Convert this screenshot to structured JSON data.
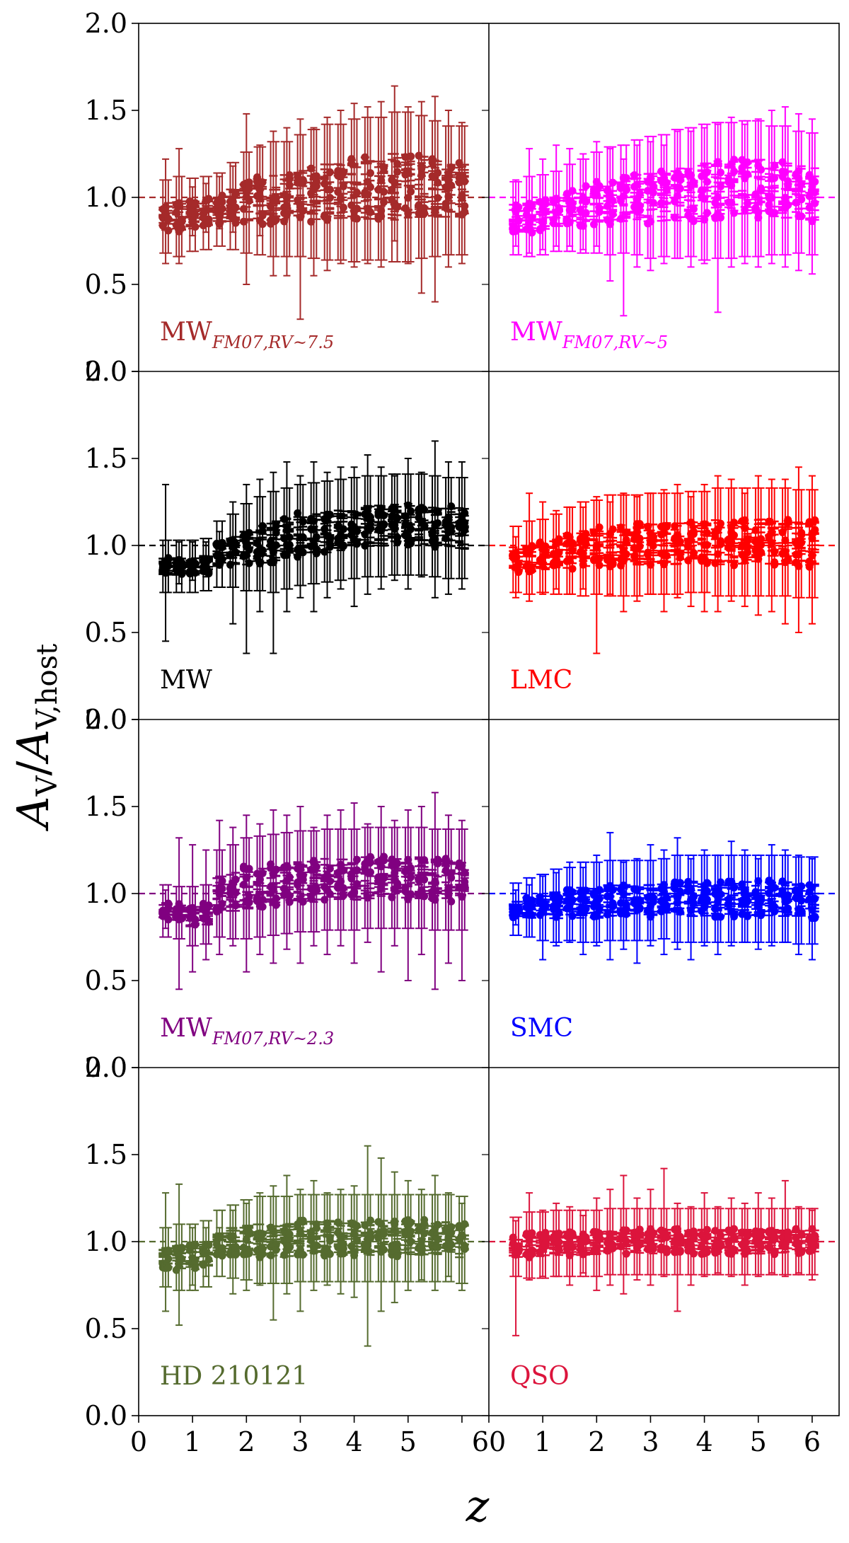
{
  "chart_data": {
    "type": "scatter",
    "description_axes": {
      "ylabel_main": "A",
      "ylabel_main_sub": "V",
      "ylabel_sep": "/",
      "ylabel_den": "A",
      "ylabel_den_sub": "V,host",
      "xlabel": "z"
    },
    "xlim": [
      0,
      6.5
    ],
    "ylim": [
      0.0,
      2.0
    ],
    "xticks": [
      0,
      1,
      2,
      3,
      4,
      5,
      6
    ],
    "xtick_labels_left": [
      "0",
      "1",
      "2",
      "3",
      "4",
      "5",
      "6"
    ],
    "xtick_labels_right": [
      "0",
      "1",
      "2",
      "3",
      "4",
      "5",
      "6"
    ],
    "xtick_joined_label": "60",
    "yticks": [
      0.0,
      0.5,
      1.0,
      1.5,
      2.0
    ],
    "ytick_labels": [
      "0.0",
      "0.5",
      "1.0",
      "1.5",
      "2.0"
    ],
    "z_values": [
      0.5,
      0.75,
      1.0,
      1.25,
      1.5,
      1.75,
      2.0,
      2.25,
      2.5,
      2.75,
      3.0,
      3.25,
      3.5,
      3.75,
      4.0,
      4.25,
      4.5,
      4.75,
      5.0,
      5.25,
      5.5,
      5.75,
      6.0
    ],
    "reference_line": 1.0,
    "panels": [
      {
        "row": 0,
        "col": 0,
        "name": "MW",
        "sub": "FM07,RV~7.5",
        "color": "#a52a2a",
        "center": [
          0.89,
          0.89,
          0.9,
          0.91,
          0.93,
          0.95,
          0.97,
          0.98,
          0.99,
          0.99,
          1.01,
          1.02,
          1.03,
          1.03,
          1.04,
          1.05,
          1.05,
          1.06,
          1.06,
          1.06,
          1.05,
          1.04,
          1.04
        ],
        "spread": [
          0.08,
          0.09,
          0.08,
          0.08,
          0.08,
          0.1,
          0.12,
          0.13,
          0.14,
          0.14,
          0.15,
          0.16,
          0.17,
          0.17,
          0.18,
          0.18,
          0.18,
          0.19,
          0.19,
          0.18,
          0.17,
          0.16,
          0.16
        ],
        "whisker_lo": [
          0.62,
          0.62,
          0.78,
          0.8,
          0.82,
          0.8,
          0.5,
          0.78,
          0.55,
          0.55,
          0.3,
          0.55,
          0.58,
          0.62,
          0.6,
          0.62,
          0.6,
          0.75,
          0.62,
          0.45,
          0.4,
          0.6,
          0.62
        ],
        "whisker_hi": [
          1.22,
          1.28,
          1.06,
          1.08,
          1.12,
          1.18,
          1.48,
          1.3,
          1.38,
          1.4,
          1.45,
          1.4,
          1.46,
          1.5,
          1.54,
          1.52,
          1.55,
          1.64,
          1.52,
          1.55,
          1.58,
          1.5,
          1.43
        ]
      },
      {
        "row": 0,
        "col": 1,
        "name": "MW",
        "sub": "FM07,RV~5",
        "color": "#ff00ff",
        "center": [
          0.88,
          0.89,
          0.9,
          0.92,
          0.94,
          0.95,
          0.97,
          0.98,
          0.99,
          1.0,
          1.0,
          1.01,
          1.02,
          1.03,
          1.03,
          1.04,
          1.04,
          1.05,
          1.05,
          1.04,
          1.04,
          1.03,
          1.02
        ],
        "spread": [
          0.08,
          0.09,
          0.09,
          0.09,
          0.1,
          0.11,
          0.12,
          0.13,
          0.13,
          0.14,
          0.15,
          0.15,
          0.16,
          0.16,
          0.17,
          0.17,
          0.17,
          0.17,
          0.17,
          0.16,
          0.16,
          0.15,
          0.15
        ],
        "whisker_lo": [
          0.72,
          0.68,
          0.7,
          0.72,
          0.72,
          0.7,
          0.72,
          0.52,
          0.32,
          0.6,
          0.58,
          0.62,
          0.65,
          0.6,
          0.62,
          0.34,
          0.6,
          0.62,
          0.6,
          0.62,
          0.6,
          0.58,
          0.56
        ],
        "whisker_hi": [
          1.1,
          1.28,
          1.22,
          1.3,
          1.28,
          1.25,
          1.32,
          1.28,
          1.22,
          1.3,
          1.32,
          1.3,
          1.38,
          1.38,
          1.4,
          1.42,
          1.46,
          1.42,
          1.45,
          1.5,
          1.52,
          1.48,
          1.45
        ]
      },
      {
        "row": 1,
        "col": 0,
        "name": "MW",
        "sub": "",
        "color": "#000000",
        "center": [
          0.88,
          0.88,
          0.88,
          0.89,
          0.95,
          0.97,
          0.99,
          1.01,
          1.02,
          1.04,
          1.06,
          1.07,
          1.08,
          1.09,
          1.1,
          1.11,
          1.11,
          1.12,
          1.12,
          1.12,
          1.11,
          1.1,
          1.1
        ],
        "spread": [
          0.05,
          0.05,
          0.05,
          0.05,
          0.07,
          0.08,
          0.1,
          0.11,
          0.12,
          0.12,
          0.12,
          0.12,
          0.12,
          0.12,
          0.12,
          0.12,
          0.12,
          0.12,
          0.12,
          0.12,
          0.12,
          0.12,
          0.12
        ],
        "whisker_lo": [
          0.45,
          0.78,
          0.8,
          0.82,
          0.88,
          0.55,
          0.38,
          0.62,
          0.38,
          0.62,
          0.7,
          0.62,
          0.7,
          0.75,
          0.65,
          0.72,
          0.75,
          0.8,
          0.75,
          0.82,
          0.7,
          0.72,
          0.75
        ],
        "whisker_hi": [
          1.35,
          1.02,
          1.02,
          1.02,
          1.08,
          1.25,
          1.35,
          1.38,
          1.42,
          1.48,
          1.4,
          1.48,
          1.42,
          1.45,
          1.45,
          1.52,
          1.45,
          1.4,
          1.5,
          1.42,
          1.6,
          1.48,
          1.48
        ]
      },
      {
        "row": 1,
        "col": 1,
        "name": "LMC",
        "sub": "",
        "color": "#ff0000",
        "center": [
          0.92,
          0.93,
          0.94,
          0.95,
          0.97,
          0.98,
          0.99,
          1.0,
          1.0,
          1.0,
          1.01,
          1.01,
          1.01,
          1.02,
          1.02,
          1.02,
          1.02,
          1.02,
          1.02,
          1.02,
          1.02,
          1.01,
          1.01
        ],
        "spread": [
          0.07,
          0.08,
          0.08,
          0.09,
          0.1,
          0.11,
          0.11,
          0.12,
          0.12,
          0.12,
          0.12,
          0.12,
          0.12,
          0.12,
          0.12,
          0.13,
          0.13,
          0.13,
          0.13,
          0.13,
          0.13,
          0.13,
          0.13
        ],
        "whisker_lo": [
          0.7,
          0.68,
          0.72,
          0.75,
          0.72,
          0.75,
          0.38,
          0.72,
          0.62,
          0.68,
          0.72,
          0.62,
          0.7,
          0.65,
          0.62,
          0.62,
          0.68,
          0.65,
          0.6,
          0.62,
          0.55,
          0.5,
          0.55
        ],
        "whisker_hi": [
          1.05,
          1.3,
          1.25,
          1.2,
          1.22,
          1.22,
          1.28,
          1.25,
          1.3,
          1.28,
          1.3,
          1.32,
          1.35,
          1.28,
          1.35,
          1.4,
          1.38,
          1.3,
          1.4,
          1.38,
          1.38,
          1.45,
          1.4
        ]
      },
      {
        "row": 2,
        "col": 0,
        "name": "MW",
        "sub": "FM07,RV~2.3",
        "color": "#800080",
        "center": [
          0.9,
          0.89,
          0.87,
          0.88,
          1.0,
          1.01,
          1.03,
          1.04,
          1.05,
          1.06,
          1.07,
          1.07,
          1.08,
          1.08,
          1.08,
          1.09,
          1.09,
          1.09,
          1.09,
          1.09,
          1.08,
          1.08,
          1.08
        ],
        "spread": [
          0.05,
          0.05,
          0.06,
          0.06,
          0.1,
          0.11,
          0.12,
          0.12,
          0.12,
          0.12,
          0.12,
          0.12,
          0.12,
          0.12,
          0.12,
          0.12,
          0.12,
          0.12,
          0.12,
          0.12,
          0.12,
          0.12,
          0.12
        ],
        "whisker_lo": [
          0.8,
          0.45,
          0.55,
          0.62,
          0.65,
          0.7,
          0.55,
          0.65,
          0.6,
          0.68,
          0.6,
          0.7,
          0.65,
          0.7,
          0.6,
          0.72,
          0.55,
          0.7,
          0.5,
          0.65,
          0.45,
          0.6,
          0.5
        ],
        "whisker_hi": [
          1.02,
          1.32,
          1.28,
          1.25,
          1.42,
          1.38,
          1.45,
          1.4,
          1.48,
          1.45,
          1.5,
          1.38,
          1.45,
          1.48,
          1.52,
          1.4,
          1.5,
          1.42,
          1.48,
          1.5,
          1.58,
          1.45,
          1.42
        ]
      },
      {
        "row": 2,
        "col": 1,
        "name": "SMC",
        "sub": "",
        "color": "#0000ff",
        "center": [
          0.91,
          0.92,
          0.92,
          0.93,
          0.94,
          0.95,
          0.95,
          0.96,
          0.96,
          0.96,
          0.96,
          0.97,
          0.97,
          0.97,
          0.97,
          0.97,
          0.97,
          0.97,
          0.97,
          0.97,
          0.97,
          0.96,
          0.96
        ],
        "spread": [
          0.05,
          0.06,
          0.07,
          0.08,
          0.08,
          0.09,
          0.09,
          0.09,
          0.09,
          0.09,
          0.09,
          0.09,
          0.1,
          0.1,
          0.1,
          0.1,
          0.1,
          0.1,
          0.1,
          0.1,
          0.1,
          0.1,
          0.1
        ],
        "whisker_lo": [
          0.82,
          0.75,
          0.62,
          0.7,
          0.72,
          0.65,
          0.7,
          0.62,
          0.68,
          0.6,
          0.7,
          0.65,
          0.68,
          0.62,
          0.7,
          0.65,
          0.7,
          0.72,
          0.68,
          0.7,
          0.72,
          0.65,
          0.62
        ],
        "whisker_hi": [
          1.02,
          1.05,
          1.1,
          1.12,
          1.18,
          1.15,
          1.22,
          1.35,
          1.18,
          1.2,
          1.28,
          1.25,
          1.32,
          1.2,
          1.25,
          1.22,
          1.3,
          1.25,
          1.2,
          1.28,
          1.25,
          1.22,
          1.2
        ]
      },
      {
        "row": 3,
        "col": 0,
        "name": "HD 210121",
        "sub": "",
        "color": "#556b2f",
        "center": [
          0.91,
          0.91,
          0.91,
          0.93,
          0.99,
          1.0,
          1.01,
          1.01,
          1.01,
          1.01,
          1.02,
          1.02,
          1.02,
          1.02,
          1.02,
          1.02,
          1.02,
          1.02,
          1.02,
          1.02,
          1.02,
          1.02,
          1.01
        ],
        "spread": [
          0.06,
          0.07,
          0.07,
          0.07,
          0.07,
          0.08,
          0.09,
          0.1,
          0.1,
          0.1,
          0.1,
          0.1,
          0.1,
          0.1,
          0.1,
          0.1,
          0.1,
          0.1,
          0.1,
          0.1,
          0.1,
          0.1,
          0.1
        ],
        "whisker_lo": [
          0.6,
          0.52,
          0.75,
          0.8,
          0.92,
          0.7,
          0.72,
          0.75,
          0.55,
          0.7,
          0.6,
          0.72,
          0.75,
          0.7,
          0.68,
          0.4,
          0.6,
          0.65,
          0.72,
          0.78,
          0.72,
          0.8,
          0.72
        ],
        "whisker_hi": [
          1.28,
          1.33,
          1.08,
          1.08,
          1.08,
          1.18,
          1.22,
          1.28,
          1.32,
          1.38,
          1.3,
          1.35,
          1.28,
          1.3,
          1.32,
          1.55,
          1.48,
          1.4,
          1.35,
          1.3,
          1.38,
          1.28,
          1.22
        ]
      },
      {
        "row": 3,
        "col": 1,
        "name": "QSO",
        "sub": "",
        "color": "#dc143c",
        "center": [
          0.97,
          0.98,
          0.98,
          0.99,
          0.99,
          0.99,
          0.99,
          1.0,
          1.0,
          1.0,
          1.0,
          1.0,
          1.0,
          1.0,
          1.0,
          1.0,
          1.0,
          1.0,
          1.0,
          1.0,
          1.0,
          1.0,
          1.0
        ],
        "spread": [
          0.06,
          0.07,
          0.07,
          0.07,
          0.07,
          0.07,
          0.07,
          0.07,
          0.07,
          0.07,
          0.07,
          0.07,
          0.07,
          0.07,
          0.07,
          0.07,
          0.07,
          0.07,
          0.07,
          0.07,
          0.07,
          0.07,
          0.07
        ],
        "whisker_lo": [
          0.46,
          0.78,
          0.8,
          0.8,
          0.75,
          0.82,
          0.72,
          0.75,
          0.7,
          0.78,
          0.75,
          0.8,
          0.6,
          0.75,
          0.8,
          0.82,
          0.8,
          0.75,
          0.8,
          0.82,
          0.8,
          0.82,
          0.78
        ],
        "whisker_hi": [
          1.12,
          1.28,
          1.18,
          1.22,
          1.2,
          1.15,
          1.25,
          1.3,
          1.38,
          1.25,
          1.3,
          1.42,
          1.22,
          1.2,
          1.28,
          1.2,
          1.25,
          1.22,
          1.28,
          1.25,
          1.35,
          1.2,
          1.18
        ]
      }
    ]
  }
}
